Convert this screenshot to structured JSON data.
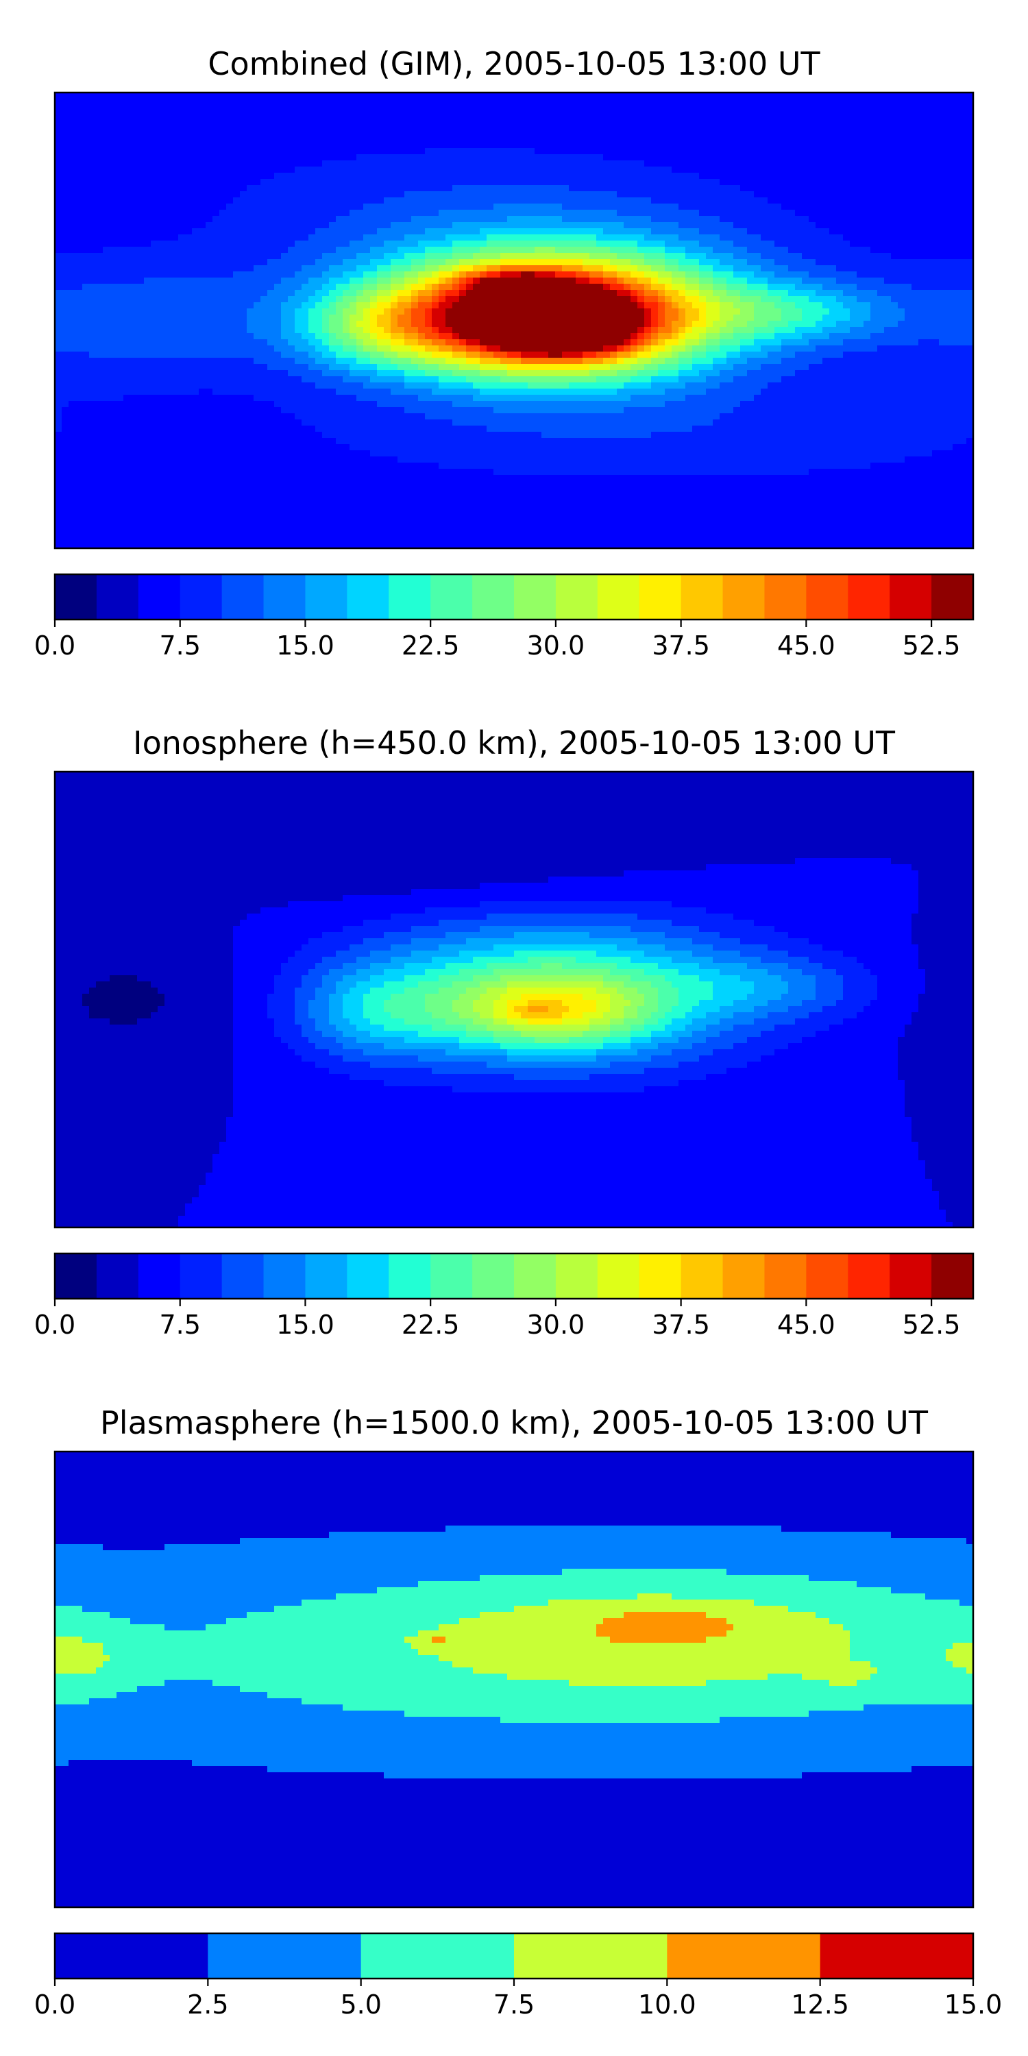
{
  "chart_data": [
    {
      "type": "heatmap",
      "title": "Combined (GIM), 2005-10-05 13:00 UT",
      "xlabel": "",
      "ylabel": "",
      "xlim": [
        -180,
        180
      ],
      "ylim": [
        -90,
        90
      ],
      "grid": false,
      "colorbar": {
        "levels": [
          0,
          2.5,
          5,
          7.5,
          10,
          12.5,
          15,
          17.5,
          20,
          22.5,
          25,
          27.5,
          30,
          32.5,
          35,
          37.5,
          40,
          42.5,
          45,
          47.5,
          50,
          52.5,
          55
        ],
        "colors": [
          "#00007f",
          "#0000c1",
          "#0000ff",
          "#0020ff",
          "#0050ff",
          "#007cff",
          "#00a8ff",
          "#00d4ff",
          "#22ffd4",
          "#4bffab",
          "#6eff88",
          "#93ff64",
          "#b9ff3d",
          "#deff18",
          "#fff000",
          "#ffc800",
          "#ffa000",
          "#ff7800",
          "#ff4d00",
          "#ff2500",
          "#d50000",
          "#8f0000"
        ],
        "tick_values": [
          0,
          7.5,
          15,
          22.5,
          30,
          37.5,
          45,
          52.5
        ],
        "tick_labels": [
          "0.0",
          "7.5",
          "15.0",
          "22.5",
          "30.0",
          "37.5",
          "45.0",
          "52.5"
        ]
      },
      "field": {
        "background": 6,
        "features": [
          {
            "lon": 15,
            "lat": 5,
            "rlon": 75,
            "rlat": 28,
            "value": 28
          },
          {
            "lon": 12,
            "lat": 0,
            "rlon": 55,
            "rlat": 20,
            "value": 38
          },
          {
            "lon": 20,
            "lat": -5,
            "rlon": 22,
            "rlat": 8,
            "value": 14
          },
          {
            "lon": 0,
            "lat": 15,
            "rlon": 22,
            "rlat": 6,
            "value": 10
          },
          {
            "lon": 110,
            "lat": 3,
            "rlon": 40,
            "rlat": 12,
            "value": 10
          },
          {
            "lon": -55,
            "lat": -3,
            "rlon": 30,
            "rlat": 16,
            "value": 10
          },
          {
            "lon": -150,
            "lat": 0,
            "rlon": 60,
            "rlat": 22,
            "value": 6
          },
          {
            "lon": -20,
            "lat": 45,
            "rlon": 100,
            "rlat": 25,
            "value": 3
          },
          {
            "lon": 60,
            "lat": -45,
            "rlon": 140,
            "rlat": 20,
            "value": 3
          }
        ]
      }
    },
    {
      "type": "heatmap",
      "title": "Ionosphere  (h=450.0 km), 2005-10-05 13:00 UT",
      "xlabel": "",
      "ylabel": "",
      "xlim": [
        -180,
        180
      ],
      "ylim": [
        -90,
        90
      ],
      "grid": false,
      "colorbar": {
        "levels": [
          0,
          2.5,
          5,
          7.5,
          10,
          12.5,
          15,
          17.5,
          20,
          22.5,
          25,
          27.5,
          30,
          32.5,
          35,
          37.5,
          40,
          42.5,
          45,
          47.5,
          50,
          52.5,
          55
        ],
        "colors": [
          "#00007f",
          "#0000c1",
          "#0000ff",
          "#0020ff",
          "#0050ff",
          "#007cff",
          "#00a8ff",
          "#00d4ff",
          "#22ffd4",
          "#4bffab",
          "#6eff88",
          "#93ff64",
          "#b9ff3d",
          "#deff18",
          "#fff000",
          "#ffc800",
          "#ffa000",
          "#ff7800",
          "#ff4d00",
          "#ff2500",
          "#d50000",
          "#8f0000"
        ],
        "tick_values": [
          0,
          7.5,
          15,
          22.5,
          30,
          37.5,
          45,
          52.5
        ],
        "tick_labels": [
          "0.0",
          "7.5",
          "15.0",
          "22.5",
          "30.0",
          "37.5",
          "45.0",
          "52.5"
        ]
      },
      "field": {
        "background": 5,
        "features": [
          {
            "lon": 15,
            "lat": 3,
            "rlon": 75,
            "rlat": 28,
            "value": 20
          },
          {
            "lon": 15,
            "lat": -5,
            "rlon": 40,
            "rlat": 14,
            "value": 14
          },
          {
            "lon": 8,
            "lat": -5,
            "rlon": 8,
            "rlat": 3,
            "value": 4
          },
          {
            "lon": 100,
            "lat": 5,
            "rlon": 40,
            "rlat": 12,
            "value": 6
          },
          {
            "lon": -55,
            "lat": -5,
            "rlon": 30,
            "rlat": 18,
            "value": 8
          },
          {
            "lon": -150,
            "lat": 0,
            "rlon": 50,
            "rlat": 25,
            "value": -3
          },
          {
            "lon": -20,
            "lat": 50,
            "rlon": 80,
            "rlat": 18,
            "value": -2
          }
        ]
      }
    },
    {
      "type": "heatmap",
      "title": "Plasmasphere (h=1500.0 km), 2005-10-05 13:00 UT",
      "xlabel": "",
      "ylabel": "",
      "xlim": [
        -180,
        180
      ],
      "ylim": [
        -90,
        90
      ],
      "grid": false,
      "colorbar": {
        "levels": [
          0,
          2.5,
          5,
          7.5,
          10,
          12.5,
          15
        ],
        "colors": [
          "#0000d6",
          "#0080ff",
          "#36ffc8",
          "#c8ff36",
          "#ff9400",
          "#d60000"
        ],
        "tick_values": [
          0,
          2.5,
          5,
          7.5,
          10,
          12.5,
          15
        ],
        "tick_labels": [
          "0.0",
          "2.5",
          "5.0",
          "7.5",
          "10.0",
          "12.5",
          "15.0"
        ]
      },
      "field": {
        "background": 1.5,
        "features": [
          {
            "lon": 30,
            "lat": 10,
            "rlon": 240,
            "rlat": 38,
            "value": 5.5
          },
          {
            "lon": 60,
            "lat": 20,
            "rlon": 90,
            "rlat": 22,
            "value": 3.0
          },
          {
            "lon": 60,
            "lat": 22,
            "rlon": 28,
            "rlat": 6,
            "value": 2.2
          },
          {
            "lon": 130,
            "lat": 2,
            "rlon": 12,
            "rlat": 4,
            "value": 2.6
          },
          {
            "lon": -170,
            "lat": 8,
            "rlon": 25,
            "rlat": 14,
            "value": 3.0
          },
          {
            "lon": -30,
            "lat": 15,
            "rlon": 8,
            "rlat": 3,
            "value": 2.8
          }
        ]
      }
    }
  ]
}
